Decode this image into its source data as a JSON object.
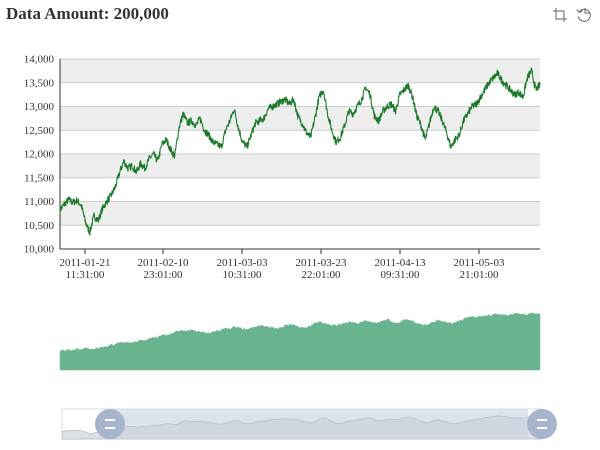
{
  "title": "Data Amount: 200,000",
  "toolbox": {
    "items": [
      {
        "name": "zoom-icon",
        "tooltip": "Zoom"
      },
      {
        "name": "zoom-reset-icon",
        "tooltip": "Zoom Reset"
      }
    ]
  },
  "colors": {
    "line": "#1a7a2a",
    "volume": "#6ab38f",
    "band": "#eeeeee",
    "axis": "#333333",
    "slider_fill": "#d5deea",
    "slider_handle": "#a6b5cc",
    "slider_shadow": "#c7cdd6"
  },
  "chart_data": {
    "type": "line",
    "title": "Data Amount: 200,000",
    "point_count": 200000,
    "x_start": "2011-01-19 20:00:00",
    "x_end": "2011-05-20 04:00:00",
    "x_tick_labels": [
      [
        "2011-01-21",
        "11:31:00"
      ],
      [
        "2011-02-10",
        "23:01:00"
      ],
      [
        "2011-03-03",
        "10:31:00"
      ],
      [
        "2011-03-23",
        "22:01:00"
      ],
      [
        "2011-04-13",
        "09:31:00"
      ],
      [
        "2011-05-03",
        "21:01:00"
      ]
    ],
    "y_ticks": [
      10000,
      10500,
      11000,
      11500,
      12000,
      12500,
      13000,
      13500,
      14000
    ],
    "y_tick_labels": [
      "10,000",
      "10,500",
      "11,000",
      "11,500",
      "12,000",
      "12,500",
      "13,000",
      "13,500",
      "14,000"
    ],
    "ylim": [
      10000,
      14000
    ],
    "grid": "alternating-bands",
    "series": [
      {
        "values": [
          10820,
          10940,
          11040,
          10980,
          11020,
          10920,
          10560,
          10350,
          10700,
          10600,
          10850,
          11000,
          11120,
          11300,
          11600,
          11850,
          11700,
          11750,
          11620,
          11800,
          11700,
          11900,
          12000,
          11850,
          12200,
          12300,
          12100,
          11950,
          12550,
          12850,
          12650,
          12700,
          12600,
          12750,
          12500,
          12400,
          12250,
          12200,
          12150,
          12500,
          12700,
          12950,
          12550,
          12250,
          12150,
          12400,
          12650,
          12700,
          12750,
          12950,
          13000,
          13050,
          13100,
          13150,
          13050,
          13150,
          12800,
          12650,
          12450,
          12350,
          12750,
          13200,
          13350,
          12850,
          12500,
          12250,
          12350,
          12600,
          12900,
          12850,
          13000,
          13150,
          13400,
          13250,
          12800,
          12700,
          12900,
          13000,
          13050,
          12900,
          13250,
          13350,
          13450,
          13200,
          12800,
          12600,
          12300,
          12650,
          13000,
          12900,
          12700,
          12450,
          12150,
          12300,
          12400,
          12700,
          12850,
          13000,
          13050,
          13200,
          13350,
          13500,
          13600,
          13700,
          13550,
          13450,
          13350,
          13250,
          13300,
          13200,
          13600,
          13750,
          13350,
          13450
        ]
      }
    ],
    "volume": [
      0.33,
      0.34,
      0.35,
      0.34,
      0.36,
      0.35,
      0.38,
      0.37,
      0.36,
      0.38,
      0.4,
      0.41,
      0.43,
      0.45,
      0.47,
      0.48,
      0.47,
      0.49,
      0.5,
      0.52,
      0.51,
      0.54,
      0.56,
      0.58,
      0.6,
      0.62,
      0.64,
      0.66,
      0.68,
      0.7,
      0.69,
      0.7,
      0.68,
      0.67,
      0.66,
      0.65,
      0.66,
      0.68,
      0.7,
      0.72,
      0.73,
      0.75,
      0.74,
      0.72,
      0.71,
      0.73,
      0.75,
      0.77,
      0.78,
      0.76,
      0.74,
      0.72,
      0.75,
      0.78,
      0.8,
      0.78,
      0.76,
      0.73,
      0.75,
      0.78,
      0.82,
      0.85,
      0.83,
      0.8,
      0.79,
      0.78,
      0.8,
      0.82,
      0.85,
      0.83,
      0.81,
      0.84,
      0.87,
      0.85,
      0.82,
      0.84,
      0.86,
      0.88,
      0.85,
      0.82,
      0.84,
      0.87,
      0.89,
      0.86,
      0.83,
      0.8,
      0.79,
      0.82,
      0.85,
      0.87,
      0.85,
      0.83,
      0.81,
      0.83,
      0.86,
      0.89,
      0.91,
      0.93,
      0.92,
      0.94,
      0.95,
      0.96,
      0.97,
      0.98,
      0.96,
      0.95,
      0.97,
      0.99,
      0.98,
      0.97,
      0.98,
      1.0,
      0.99,
      1.0
    ],
    "data_zoom": {
      "start_percent": 0,
      "end_percent": 100
    }
  }
}
